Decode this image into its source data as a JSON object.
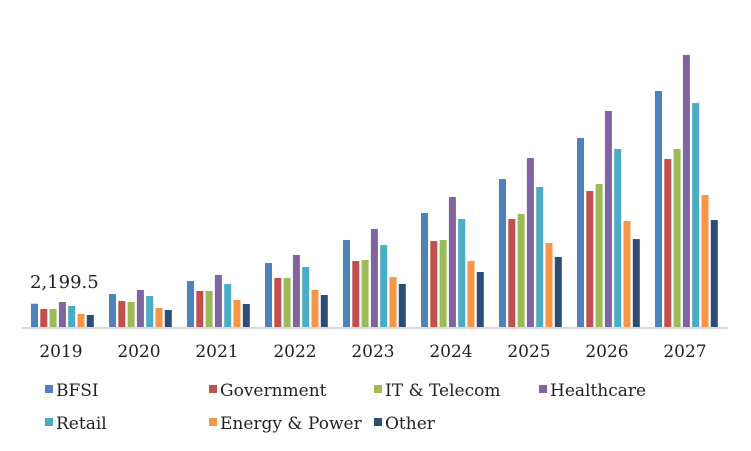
{
  "chart_data": {
    "type": "bar",
    "categories": [
      "2019",
      "2020",
      "2021",
      "2022",
      "2023",
      "2024",
      "2025",
      "2026",
      "2027"
    ],
    "series": [
      {
        "name": "BFSI",
        "color": "#4f81bd",
        "values": [
          2199.5,
          3080,
          4250,
          5880,
          7960,
          10410,
          13480,
          17200,
          21450
        ]
      },
      {
        "name": "Government",
        "color": "#c0504d",
        "values": [
          1720,
          2440,
          3350,
          4530,
          6060,
          7870,
          9860,
          12400,
          15290
        ]
      },
      {
        "name": "IT & Telecom",
        "color": "#9bbb59",
        "values": [
          1720,
          2350,
          3350,
          4530,
          6150,
          7960,
          10320,
          13030,
          16200
        ]
      },
      {
        "name": "Healthcare",
        "color": "#8064a2",
        "values": [
          2350,
          3440,
          4800,
          6610,
          8960,
          11860,
          15390,
          19640,
          24710
        ]
      },
      {
        "name": "Retail",
        "color": "#4bacc6",
        "values": [
          1990,
          2900,
          3980,
          5520,
          7510,
          9860,
          12760,
          16200,
          20360
        ]
      },
      {
        "name": "Energy & Power",
        "color": "#f79646",
        "values": [
          1270,
          1810,
          2530,
          3440,
          4620,
          6060,
          7690,
          9680,
          12040
        ]
      },
      {
        "name": "Other",
        "color": "#2c4d75",
        "values": [
          1180,
          1630,
          2170,
          2990,
          3980,
          5070,
          6430,
          8050,
          9770
        ]
      }
    ],
    "annotations": [
      {
        "text": "2,199.5",
        "category": "2019",
        "series": "BFSI"
      }
    ],
    "grid": false,
    "legend": "bottom",
    "title": "",
    "xlabel": "",
    "ylabel": ""
  }
}
